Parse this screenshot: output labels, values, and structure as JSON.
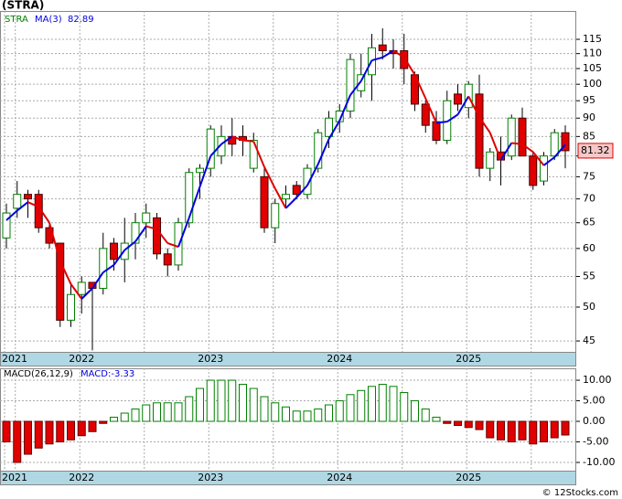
{
  "chart_data": [
    {
      "type": "candlestick",
      "title": "(STRA)",
      "symbol": "STRA",
      "ma_name": "MA(3)",
      "log_scale": true,
      "grid": true,
      "categories": [
        "2021",
        null,
        null,
        null,
        null,
        null,
        null,
        "2022",
        null,
        null,
        null,
        null,
        null,
        null,
        null,
        null,
        null,
        null,
        null,
        "2023",
        null,
        null,
        null,
        null,
        null,
        null,
        null,
        null,
        null,
        null,
        null,
        "2024",
        null,
        null,
        null,
        null,
        null,
        null,
        null,
        null,
        null,
        null,
        null,
        "2025",
        null,
        null,
        null,
        null,
        null,
        null,
        null,
        null,
        null
      ],
      "open": [
        62,
        68,
        71,
        71,
        64,
        61,
        48,
        52,
        54,
        53,
        61,
        58,
        61,
        65,
        66,
        59,
        57,
        65,
        76,
        77,
        80,
        85,
        85,
        77,
        75,
        64,
        70,
        73,
        71,
        77,
        85,
        89,
        92,
        98,
        103,
        113,
        111,
        111,
        103,
        94,
        89,
        84,
        97,
        93,
        97,
        77,
        81,
        80,
        90,
        80,
        74,
        80,
        86
      ],
      "high": [
        69,
        74,
        72,
        72,
        65,
        61,
        54,
        55,
        54,
        63,
        62,
        66,
        67,
        69,
        67,
        60,
        66,
        77,
        78,
        88,
        88,
        90,
        88,
        86,
        77,
        70,
        73,
        74,
        78,
        87,
        92,
        94,
        110,
        110,
        117,
        119,
        115,
        117,
        104,
        95,
        92,
        98,
        100,
        101,
        103,
        82,
        85,
        91,
        93,
        81,
        81,
        87,
        88
      ],
      "low": [
        60,
        66,
        66,
        63,
        60,
        47,
        47,
        49,
        43.7,
        52,
        56,
        54,
        58,
        62,
        58,
        55,
        56,
        64,
        70,
        75,
        78,
        80,
        80,
        76,
        63,
        61,
        68,
        70,
        70,
        76,
        82,
        86,
        90,
        96,
        95,
        108,
        105,
        100,
        92,
        86,
        83,
        83,
        92,
        90,
        75,
        74,
        73,
        79,
        80,
        72,
        73,
        79,
        77
      ],
      "close": [
        67,
        71,
        70,
        64,
        61,
        48,
        52,
        54,
        53,
        60,
        58,
        61,
        65,
        67,
        59,
        57,
        65,
        76,
        77,
        87,
        85,
        83,
        84,
        84,
        64,
        69,
        71,
        71,
        77,
        86,
        90,
        92,
        108,
        103,
        112,
        111,
        110,
        105,
        94,
        88,
        84,
        95,
        94,
        100,
        77,
        81,
        79,
        90,
        80,
        73,
        80,
        86,
        81.32
      ],
      "ma": [
        65.5,
        67.5,
        69.3,
        68.3,
        65,
        57.7,
        53.7,
        51.3,
        53,
        55.7,
        57,
        59.7,
        61.3,
        64.3,
        63.7,
        61,
        60.3,
        66,
        72.7,
        80,
        83,
        85,
        84,
        83.7,
        77.3,
        72.3,
        68,
        70.3,
        73,
        78,
        84.3,
        89.3,
        96.7,
        101,
        107.7,
        108.7,
        111,
        108.7,
        103,
        95.7,
        88.7,
        89,
        91,
        96.3,
        90.3,
        86,
        79,
        83.3,
        83,
        81,
        77.7,
        79.7,
        82.89
      ],
      "up_color": "#008000",
      "down_color": "#e00000",
      "ma_up_color": "#0000dd",
      "ma_down_color": "#e00000",
      "ylim": [
        43.5,
        125.6
      ],
      "yticks": [
        45,
        50,
        55,
        60,
        65,
        70,
        75,
        80,
        85,
        90,
        95,
        100,
        105,
        110,
        115
      ]
    },
    {
      "type": "bar",
      "title": "MACD(26,12,9)",
      "value_prefix": "MACD:",
      "grid": true,
      "values": [
        -5,
        -10,
        -8,
        -6.5,
        -5.5,
        -5,
        -4.5,
        -3.5,
        -2.5,
        -0.5,
        1,
        2,
        3,
        4,
        4.5,
        4.5,
        4.5,
        6,
        8,
        10,
        10,
        10,
        9,
        8,
        6,
        4.5,
        3.5,
        2.5,
        2.5,
        3,
        4,
        5,
        6.5,
        7.5,
        8.5,
        9,
        8.5,
        7,
        5,
        3,
        1,
        -0.5,
        -1,
        -1.5,
        -2,
        -4,
        -4.5,
        -5,
        -4.5,
        -5.5,
        -5,
        -4,
        -3.33
      ],
      "up_color": "#008000",
      "down_color": "#e00000",
      "ylim": [
        -12,
        12.9
      ],
      "yticks": [
        {
          "value": -10,
          "label": "-10.00"
        },
        {
          "value": -5,
          "label": "-5.00"
        },
        {
          "value": 0,
          "label": "0.00"
        },
        {
          "value": 5,
          "label": "5.00"
        },
        {
          "value": 10,
          "label": "10.00"
        }
      ]
    }
  ],
  "footer": "© 12Stocks.com"
}
